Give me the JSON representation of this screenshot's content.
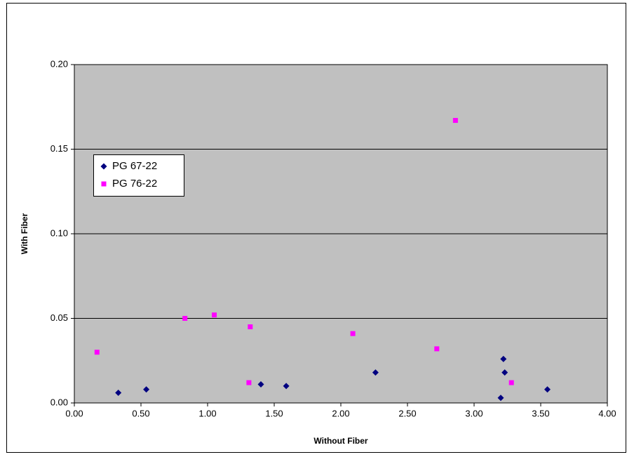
{
  "chart_data": {
    "type": "scatter",
    "x_label": "Without Fiber",
    "y_label": "With Fiber",
    "xlim": [
      0,
      4
    ],
    "ylim": [
      0,
      0.2
    ],
    "xticks": [
      {
        "value": 0,
        "label": "0.00"
      },
      {
        "value": 0.5,
        "label": "0.50"
      },
      {
        "value": 1,
        "label": "1.00"
      },
      {
        "value": 1.5,
        "label": "1.50"
      },
      {
        "value": 2,
        "label": "2.00"
      },
      {
        "value": 2.5,
        "label": "2.50"
      },
      {
        "value": 3,
        "label": "3.00"
      },
      {
        "value": 3.5,
        "label": "3.50"
      },
      {
        "value": 4,
        "label": "4.00"
      }
    ],
    "yticks": [
      {
        "value": 0,
        "label": "0.00"
      },
      {
        "value": 0.05,
        "label": "0.05"
      },
      {
        "value": 0.1,
        "label": "0.10"
      },
      {
        "value": 0.15,
        "label": "0.15"
      },
      {
        "value": 0.2,
        "label": "0.20"
      }
    ],
    "grid": true,
    "series": [
      {
        "name": "PG 67-22",
        "color": "#000080",
        "marker": "diamond",
        "x": [
          0.33,
          0.54,
          1.4,
          1.59,
          2.26,
          3.22,
          3.23,
          3.2,
          3.55
        ],
        "values": [
          0.006,
          0.008,
          0.011,
          0.01,
          0.018,
          0.026,
          0.018,
          0.003,
          0.008
        ]
      },
      {
        "name": "PG 76-22",
        "color": "#ff00ff",
        "marker": "square",
        "x": [
          0.17,
          0.83,
          1.05,
          1.32,
          1.31,
          2.09,
          2.72,
          2.86,
          3.28
        ],
        "values": [
          0.03,
          0.05,
          0.052,
          0.045,
          0.012,
          0.041,
          0.032,
          0.167,
          0.012
        ]
      }
    ]
  }
}
